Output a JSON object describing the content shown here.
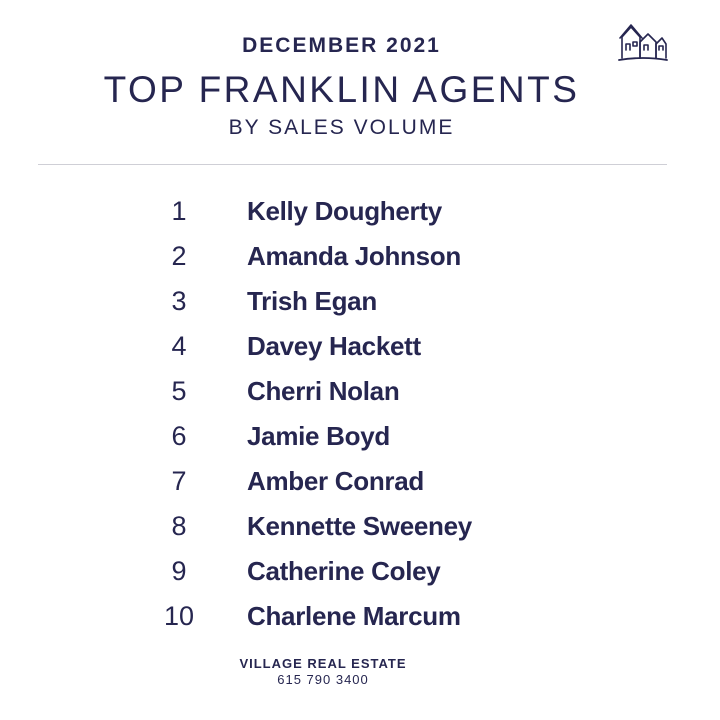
{
  "header": {
    "month": "DECEMBER 2021",
    "title": "TOP FRANKLIN AGENTS",
    "subtitle": "BY SALES VOLUME"
  },
  "logo": {
    "icon": "houses-icon"
  },
  "agents": [
    {
      "rank": "1",
      "name": "Kelly Dougherty"
    },
    {
      "rank": "2",
      "name": "Amanda Johnson"
    },
    {
      "rank": "3",
      "name": "Trish Egan"
    },
    {
      "rank": "4",
      "name": "Davey Hackett"
    },
    {
      "rank": "5",
      "name": "Cherri Nolan"
    },
    {
      "rank": "6",
      "name": "Jamie Boyd"
    },
    {
      "rank": "7",
      "name": "Amber Conrad"
    },
    {
      "rank": "8",
      "name": "Kennette Sweeney"
    },
    {
      "rank": "9",
      "name": "Catherine Coley"
    },
    {
      "rank": "10",
      "name": "Charlene Marcum"
    }
  ],
  "footer": {
    "company": "VILLAGE REAL ESTATE",
    "phone": "615 790 3400"
  },
  "colors": {
    "text": "#262650",
    "background": "#ffffff",
    "divider": "#cfcfd6"
  }
}
